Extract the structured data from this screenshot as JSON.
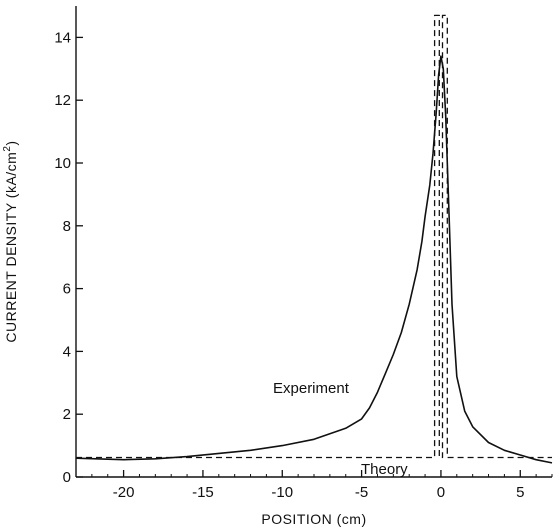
{
  "chart_data": {
    "type": "line",
    "title": "",
    "xlabel": "POSITION (cm)",
    "ylabel": "CURRENT DENSITY (kA/cm",
    "ylabel_sup": "2",
    "ylabel_end": ")",
    "xlim": [
      -23,
      7
    ],
    "ylim": [
      0,
      15
    ],
    "x_ticks": [
      -20,
      -15,
      -10,
      -5,
      0,
      5
    ],
    "x_tick_labels": [
      "-20",
      "-15",
      "-10",
      "-5",
      "0",
      "5"
    ],
    "y_ticks": [
      0,
      2,
      4,
      6,
      8,
      10,
      12,
      14
    ],
    "y_tick_labels": [
      "0",
      "2",
      "4",
      "6",
      "8",
      "10",
      "12",
      "14"
    ],
    "grid": false,
    "series": [
      {
        "name": "Experiment",
        "style": "solid",
        "x": [
          -23,
          -20,
          -18,
          -16,
          -14,
          -12,
          -10,
          -8,
          -6,
          -5,
          -4.5,
          -4,
          -3.5,
          -3,
          -2.5,
          -2,
          -1.5,
          -1.2,
          -1,
          -0.7,
          -0.5,
          -0.3,
          -0.15,
          0,
          0.15,
          0.3,
          0.5,
          0.7,
          1,
          1.5,
          2,
          3,
          4,
          5,
          6,
          7
        ],
        "y": [
          0.6,
          0.55,
          0.58,
          0.65,
          0.75,
          0.85,
          1.0,
          1.2,
          1.55,
          1.85,
          2.2,
          2.7,
          3.3,
          3.9,
          4.6,
          5.5,
          6.6,
          7.5,
          8.3,
          9.3,
          10.3,
          11.6,
          12.8,
          13.4,
          13.0,
          11.5,
          8.5,
          5.5,
          3.2,
          2.1,
          1.6,
          1.1,
          0.85,
          0.7,
          0.55,
          0.45
        ]
      },
      {
        "name": "Theory",
        "style": "dashed",
        "x": [
          -23,
          -0.4,
          -0.4,
          -0.1,
          -0.1,
          0.1,
          0.1,
          0.4,
          0.4,
          7
        ],
        "y": [
          0.62,
          0.62,
          14.7,
          14.7,
          0.62,
          0.62,
          14.7,
          14.7,
          0.62,
          0.62
        ]
      }
    ]
  }
}
